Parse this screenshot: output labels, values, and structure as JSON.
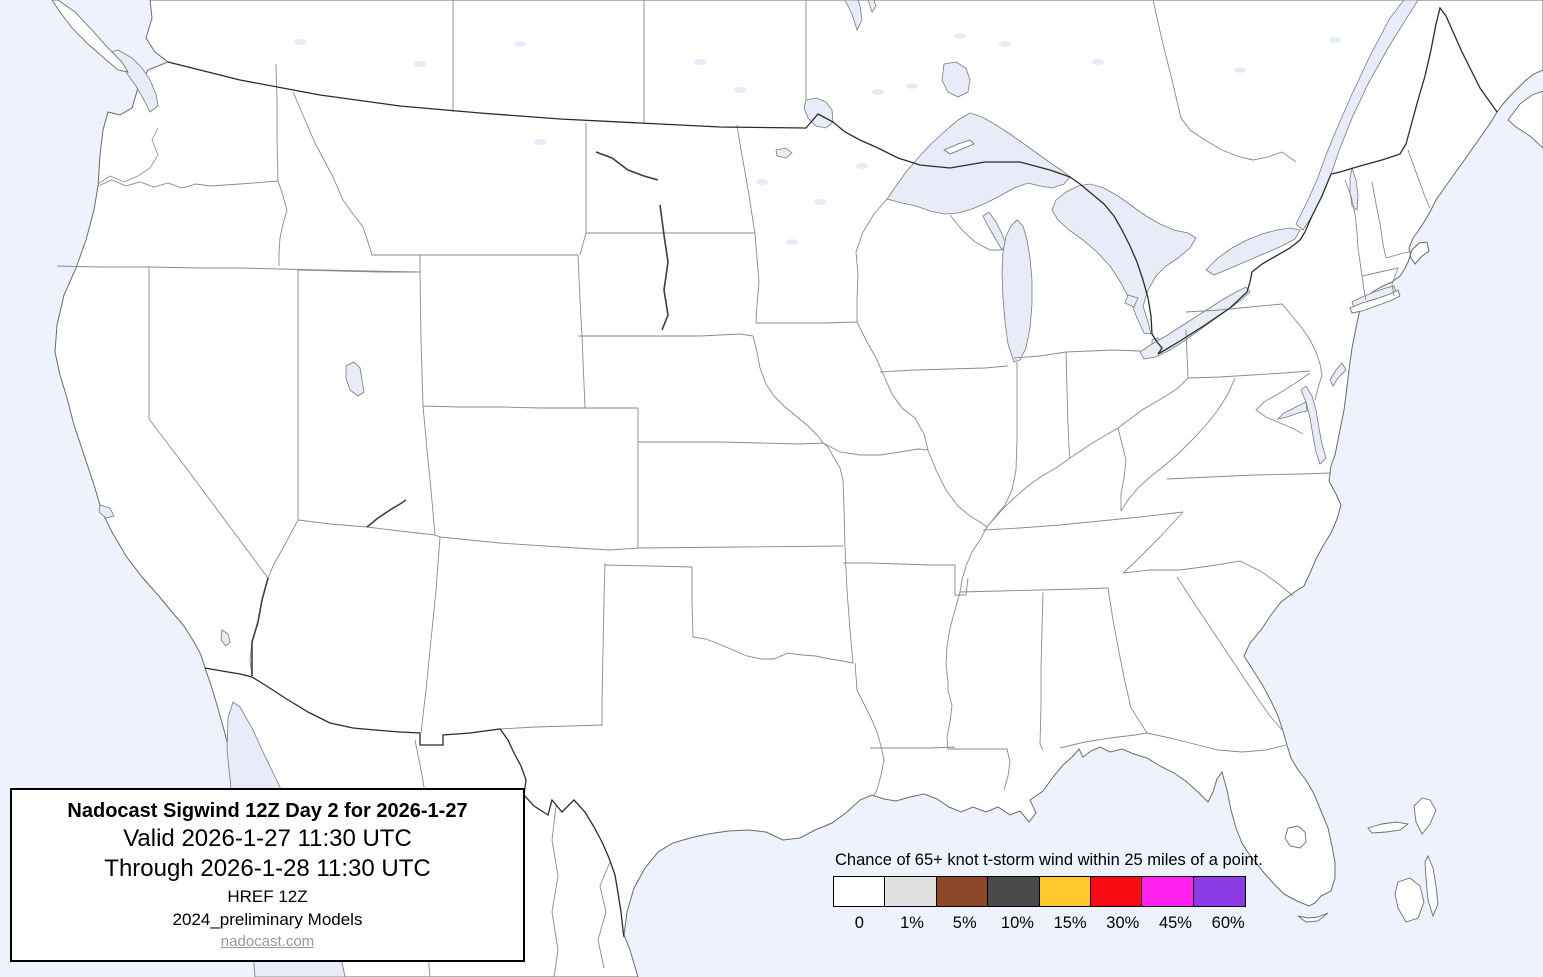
{
  "map": {
    "name": "CONUS t-storm wind probability map",
    "colors": {
      "ocean": "#eef2fc",
      "lake": "#e7ecf8",
      "land": "#ffffff",
      "state_border": "#8a8a8a",
      "country_border": "#2b2b2b",
      "coastline": "#6a6a6a"
    }
  },
  "title_box": {
    "line1": "Nadocast Sigwind 12Z Day 2 for 2026-1-27",
    "line2": "Valid 2026-1-27 11:30 UTC",
    "line3": "Through 2026-1-28 11:30 UTC",
    "line4": "HREF 12Z",
    "line5": "2024_preliminary Models",
    "link": "nadocast.com"
  },
  "legend": {
    "title": "Chance of 65+ knot t-storm wind within 25 miles of a point.",
    "entries": [
      {
        "label": "0",
        "color": "#ffffff"
      },
      {
        "label": "1%",
        "color": "#e1e1e1"
      },
      {
        "label": "5%",
        "color": "#8b4728"
      },
      {
        "label": "10%",
        "color": "#4a4a4a"
      },
      {
        "label": "15%",
        "color": "#ffc82f"
      },
      {
        "label": "30%",
        "color": "#fa0a12"
      },
      {
        "label": "45%",
        "color": "#ff22f0"
      },
      {
        "label": "60%",
        "color": "#8b3ae6"
      }
    ]
  }
}
